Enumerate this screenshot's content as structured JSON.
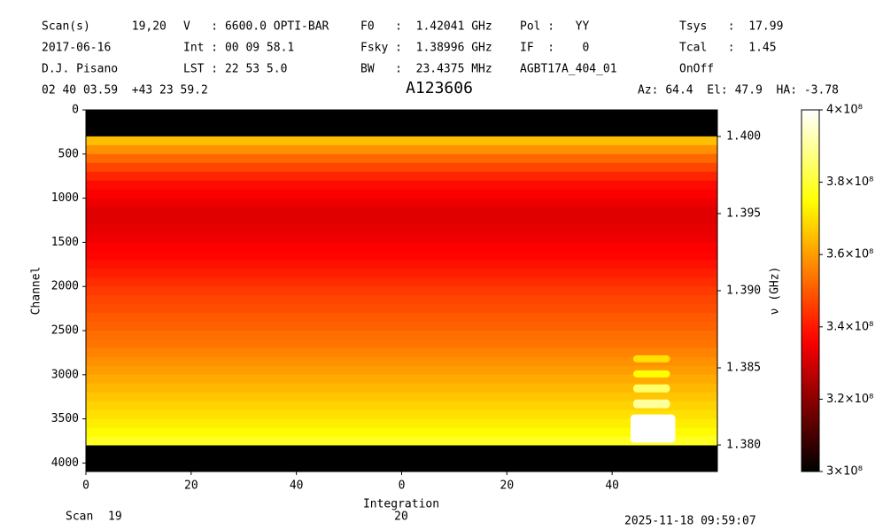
{
  "chart_data": {
    "type": "heatmap",
    "title": "A123606",
    "header_rows": [
      [
        "Scan(s)      19,20",
        "V   : 6600.0 OPTI-BAR",
        "F0   :  1.42041 GHz",
        "Pol :   YY",
        "Tsys   :  17.99"
      ],
      [
        "2017-06-16",
        "Int : 00 09 58.1",
        "Fsky :  1.38996 GHz",
        "IF  :    0",
        "Tcal   :  1.45"
      ],
      [
        "D.J. Pisano",
        "LST : 22 53 5.0",
        "BW   :  23.4375 MHz",
        "AGBT17A_404_01",
        "OnOff"
      ]
    ],
    "coordinates": "02 40 03.59  +43 23 59.2",
    "pointing": "Az: 64.4  El: 47.9  HA: -3.78",
    "timestamp": "2025-11-18 09:59:07",
    "scan_label": "Scan",
    "scans": [
      19,
      20
    ],
    "x_label": "Integration",
    "y_label": "Channel",
    "y2_label": "ν (GHz)",
    "xlim": [
      0,
      120
    ],
    "xticks": [
      0,
      20,
      40,
      {
        "value": 60,
        "label": "0"
      },
      {
        "value": 80,
        "label": "20"
      },
      {
        "value": 100,
        "label": "40"
      }
    ],
    "ylim": [
      4096,
      0
    ],
    "yticks": [
      0,
      500,
      1000,
      1500,
      2000,
      2500,
      3000,
      3500,
      4000
    ],
    "y2lim": [
      1.37828,
      1.40172
    ],
    "y2ticks": [
      {
        "value": 1.38,
        "label": "1.380"
      },
      {
        "value": 1.385,
        "label": "1.385"
      },
      {
        "value": 1.39,
        "label": "1.390"
      },
      {
        "value": 1.395,
        "label": "1.395"
      },
      {
        "value": 1.4,
        "label": "1.400"
      }
    ],
    "colormap": "hot",
    "clim": [
      300000000,
      400000000
    ],
    "cticks": [
      {
        "value": 300000000,
        "label": "3×10⁸"
      },
      {
        "value": 320000000,
        "label": "3.2×10⁸"
      },
      {
        "value": 340000000,
        "label": "3.4×10⁸"
      },
      {
        "value": 360000000,
        "label": "3.6×10⁸"
      },
      {
        "value": 380000000,
        "label": "3.8×10⁸"
      },
      {
        "value": 400000000,
        "label": "4×10⁸"
      }
    ],
    "channel_bins": [
      0,
      100,
      200,
      300,
      400,
      500,
      600,
      700,
      800,
      900,
      1000,
      1100,
      1200,
      1300,
      1400,
      1500,
      1600,
      1700,
      1800,
      1900,
      2000,
      2100,
      2200,
      2300,
      2400,
      2500,
      2600,
      2700,
      2800,
      2900,
      3000,
      3100,
      3200,
      3300,
      3400,
      3500,
      3600,
      3700,
      3800,
      3900,
      4000,
      4096
    ],
    "values": [
      250000000,
      250000000,
      300000000,
      365000000,
      358000000,
      352000000,
      347000000,
      342000000,
      338000000,
      336000000,
      334000000,
      332000000,
      332000000,
      333000000,
      334000000,
      336000000,
      337000000,
      339000000,
      341000000,
      343000000,
      345000000,
      347000000,
      348000000,
      350000000,
      351000000,
      353000000,
      354000000,
      356000000,
      358000000,
      360000000,
      362000000,
      364000000,
      366000000,
      368000000,
      370000000,
      372000000,
      374000000,
      378000000,
      250000000,
      250000000,
      250000000
    ],
    "hotspots": [
      {
        "x": [
          103.5,
          112
        ],
        "channels": [
          3450,
          3770
        ],
        "value": 410000000
      },
      {
        "x": [
          104,
          111
        ],
        "channels": [
          3280,
          3380
        ],
        "value": 390000000
      },
      {
        "x": [
          104,
          111
        ],
        "channels": [
          3110,
          3200
        ],
        "value": 385000000
      },
      {
        "x": [
          104,
          111
        ],
        "channels": [
          2950,
          3030
        ],
        "value": 375000000
      },
      {
        "x": [
          104,
          111
        ],
        "channels": [
          2780,
          2860
        ],
        "value": 370000000
      }
    ]
  }
}
